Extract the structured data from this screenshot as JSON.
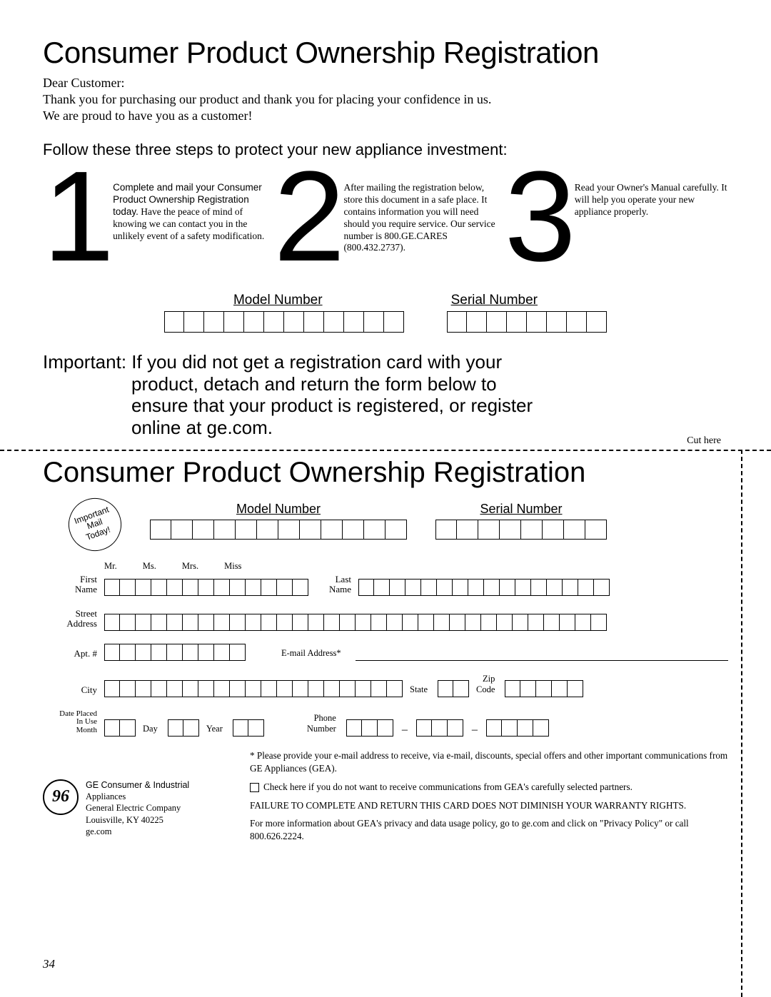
{
  "title": "Consumer Product Ownership Registration",
  "greeting": "Dear Customer:",
  "thank1": "Thank you for purchasing our product and thank you for placing your confidence in us.",
  "thank2": "We are proud to have you as a customer!",
  "follow": "Follow these three steps to protect your new appliance investment:",
  "steps": {
    "n1": "1",
    "t1a": "Complete and mail your Consumer Product Ownership Registration today.",
    "t1b": "Have the peace of mind of knowing we can contact you in the unlikely event of a safety modification.",
    "n2": "2",
    "t2": "After mailing the registration below, store this document in a safe place. It contains information you will need should you require service. Our service number is 800.GE.CARES (800.432.2737).",
    "n3": "3",
    "t3": "Read your Owner's Manual carefully. It will help you operate your new appliance properly."
  },
  "model_label": "Model Number",
  "serial_label": "Serial Number",
  "model_cells": 12,
  "serial_cells": 8,
  "important_lead": "Important:",
  "important_a": "If you did not get a registration card with your",
  "important_b": "product, detach and return the form below to",
  "important_c": "ensure that your product is registered, or register",
  "important_d": "online at ge.com.",
  "cut": "Cut here",
  "title2": "Consumer Product Ownership Registration",
  "stamp": "Important\nMail\nToday!",
  "model_cells2": 12,
  "serial_cells2": 8,
  "titles": {
    "mr": "Mr.",
    "ms": "Ms.",
    "mrs": "Mrs.",
    "miss": "Miss"
  },
  "first_name": "First\nName",
  "last_name": "Last\nName",
  "street": "Street\nAddress",
  "apt": "Apt. #",
  "email": "E-mail Address*",
  "city": "City",
  "state": "State",
  "zip": "Zip\nCode",
  "date": "Date Placed\nIn Use\nMonth",
  "day": "Day",
  "year": "Year",
  "phone": "Phone\nNumber",
  "fn_cells": 13,
  "ln_cells": 16,
  "street_cells": 32,
  "apt_cells": 9,
  "city_cells": 19,
  "state_cells": 2,
  "zip_cells": 5,
  "month_cells": 2,
  "day_cells": 2,
  "year_cells": 2,
  "phone_a": 3,
  "phone_b": 3,
  "phone_c": 4,
  "footnote1": "* Please provide your e-mail address to receive, via e-mail, discounts, special offers and other important communications from GE Appliances (GEA).",
  "footnote2": "Check here if you do not want to receive communications from GEA's carefully selected partners.",
  "footnote3": "FAILURE TO COMPLETE AND RETURN THIS CARD DOES NOT DIMINISH YOUR WARRANTY RIGHTS.",
  "footnote4": "For more information about GEA's privacy and data usage policy, go to ge.com and click on \"Privacy Policy\" or call 800.626.2224.",
  "company": {
    "line1": "GE Consumer & Industrial",
    "line2": "Appliances",
    "line3": "General Electric Company",
    "line4": "Louisville, KY 40225",
    "line5": "ge.com"
  },
  "page": "34",
  "logo": "96"
}
